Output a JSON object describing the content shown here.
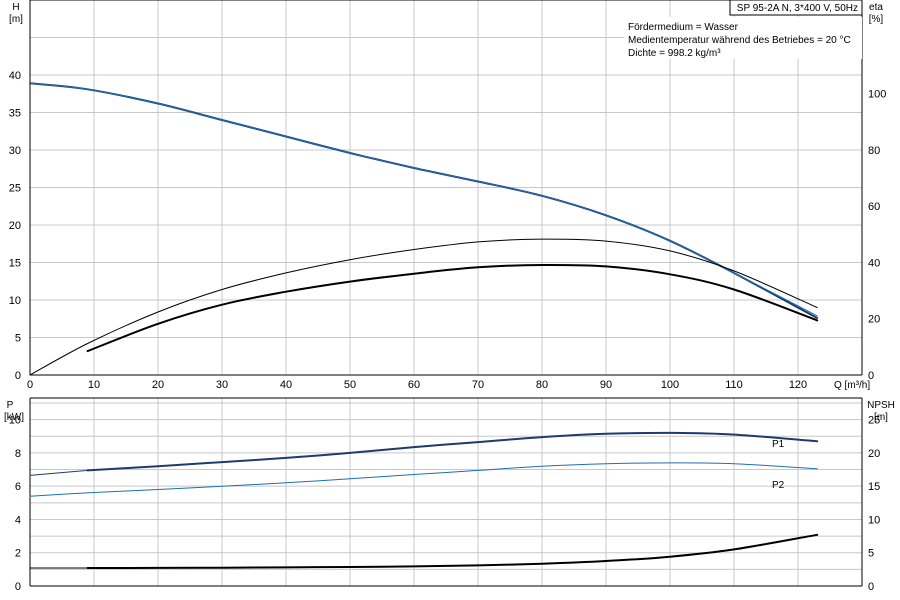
{
  "chart_data": [
    {
      "type": "line",
      "title": "SP 95-2A N, 3*400 V, 50Hz",
      "notes": [
        "Fördermedium = Wasser",
        "Medientemperatur während des Betriebes = 20 °C",
        "Dichte = 998.2 kg/m³"
      ],
      "xlabel": "Q [m³/h]",
      "ylabel": [
        "H",
        "[m]"
      ],
      "y2label": [
        "eta",
        "[%]"
      ],
      "xlim": [
        0,
        130
      ],
      "ylim": [
        0,
        50
      ],
      "y2lim": [
        0,
        133.3
      ],
      "xticks": [
        0,
        10,
        20,
        30,
        40,
        50,
        60,
        70,
        80,
        90,
        100,
        110,
        120
      ],
      "yticks": [
        0,
        5,
        10,
        15,
        20,
        25,
        30,
        35,
        40
      ],
      "y2ticks": [
        0,
        20,
        40,
        60,
        80,
        100
      ],
      "grid": true,
      "series": [
        {
          "axis": "left",
          "color": "#1f3b6e",
          "width": 2,
          "x": [
            0,
            9,
            20,
            30,
            40,
            50,
            60,
            70,
            80,
            90,
            100,
            110,
            123
          ],
          "values": [
            38.9,
            38.1,
            36.2,
            34.0,
            31.8,
            29.6,
            27.6,
            25.8,
            23.9,
            21.3,
            17.9,
            13.6,
            7.6
          ]
        },
        {
          "axis": "left",
          "color": "#1f6fb0",
          "width": 1,
          "x": [
            0,
            9,
            20,
            30,
            40,
            50,
            60,
            70,
            80,
            90,
            100,
            110,
            123
          ],
          "values": [
            38.9,
            38.1,
            36.2,
            34.0,
            31.8,
            29.6,
            27.6,
            25.8,
            23.9,
            21.3,
            17.9,
            13.6,
            7.9
          ]
        },
        {
          "axis": "right",
          "color": "#000000",
          "width": 1,
          "x": [
            0,
            9,
            20,
            30,
            40,
            50,
            60,
            70,
            80,
            90,
            100,
            110,
            123
          ],
          "values": [
            0,
            11.2,
            22.4,
            30.4,
            36.3,
            41.0,
            44.6,
            47.3,
            48.3,
            47.6,
            44.1,
            37.0,
            24.0
          ]
        },
        {
          "axis": "right",
          "color": "#000000",
          "width": 2,
          "x": [
            9,
            20,
            30,
            40,
            50,
            60,
            70,
            80,
            90,
            100,
            110,
            123
          ],
          "values": [
            8.5,
            18.2,
            25.0,
            29.6,
            33.2,
            36.0,
            38.3,
            39.1,
            38.6,
            35.8,
            30.4,
            19.4
          ]
        }
      ]
    },
    {
      "type": "line",
      "xlim": [
        0,
        130
      ],
      "ylabel": [
        "P",
        "[kW]"
      ],
      "y2label": [
        "NPSH",
        "[m]"
      ],
      "ylim": [
        0,
        11.3
      ],
      "y2lim": [
        0,
        28.25
      ],
      "yticks": [
        0,
        2,
        4,
        6,
        8,
        10
      ],
      "y2ticks": [
        0,
        5,
        10,
        15,
        20,
        25
      ],
      "grid": true,
      "series": [
        {
          "name": "P1",
          "axis": "left",
          "color": "#1f3b6e",
          "width": 2,
          "x": [
            9,
            20,
            30,
            40,
            50,
            60,
            70,
            80,
            90,
            100,
            110,
            123
          ],
          "values": [
            6.95,
            7.2,
            7.45,
            7.7,
            8.0,
            8.35,
            8.65,
            8.95,
            9.15,
            9.2,
            9.1,
            8.7
          ]
        },
        {
          "axis": "left",
          "color": "#1f3b6e",
          "width": 1,
          "x": [
            0,
            9
          ],
          "values": [
            6.65,
            6.95
          ]
        },
        {
          "name": "P2",
          "axis": "left",
          "color": "#1f6fb0",
          "width": 1,
          "x": [
            0,
            10,
            20,
            30,
            40,
            50,
            60,
            70,
            80,
            90,
            100,
            110,
            123
          ],
          "values": [
            5.4,
            5.62,
            5.8,
            6.0,
            6.2,
            6.45,
            6.7,
            6.95,
            7.2,
            7.35,
            7.4,
            7.35,
            7.05
          ]
        },
        {
          "axis": "right",
          "color": "#000000",
          "width": 2,
          "x": [
            9,
            20,
            30,
            40,
            50,
            60,
            70,
            80,
            90,
            100,
            110,
            123
          ],
          "values": [
            2.7,
            2.72,
            2.75,
            2.8,
            2.86,
            2.95,
            3.1,
            3.35,
            3.75,
            4.4,
            5.5,
            7.7
          ]
        },
        {
          "axis": "right",
          "color": "#000000",
          "width": 1,
          "x": [
            0,
            9
          ],
          "values": [
            2.7,
            2.7
          ]
        }
      ]
    }
  ]
}
